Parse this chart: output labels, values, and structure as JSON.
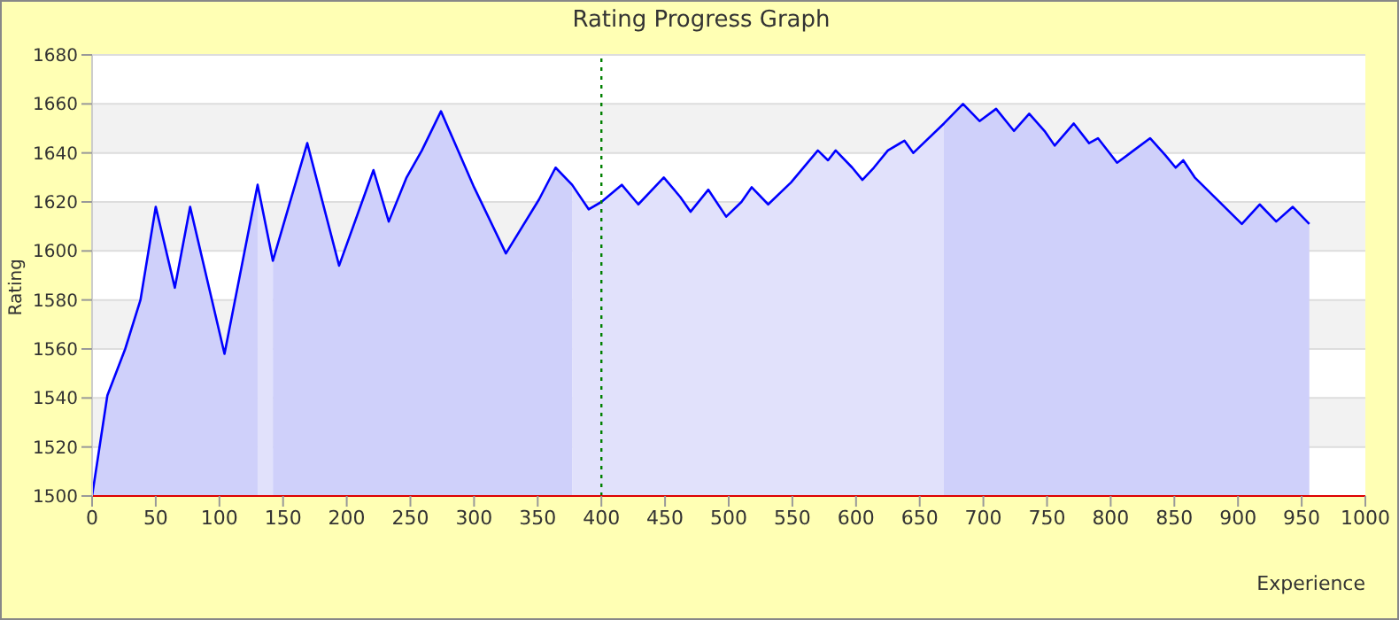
{
  "chart_data": {
    "type": "area",
    "title": "Rating Progress Graph",
    "xlabel": "Experience",
    "ylabel": "Rating",
    "xlim": [
      0,
      1000
    ],
    "xticks": [
      0,
      50,
      100,
      150,
      200,
      250,
      300,
      350,
      400,
      450,
      500,
      550,
      600,
      650,
      700,
      750,
      800,
      850,
      900,
      950,
      1000
    ],
    "ylim": [
      1500,
      1680
    ],
    "yticks": [
      1500,
      1520,
      1540,
      1560,
      1580,
      1600,
      1620,
      1640,
      1660,
      1680
    ],
    "grid": "y",
    "ref_lines": [
      {
        "axis": "x",
        "value": 400,
        "color": "#008000",
        "line_style": "dotted"
      }
    ],
    "series": [
      {
        "color": "#cfd0fa",
        "x": [
          0,
          12,
          26,
          38,
          50,
          65,
          77,
          104,
          130
        ],
        "values": [
          1500,
          1541,
          1560,
          1580,
          1618,
          1585,
          1618,
          1558,
          1627
        ]
      },
      {
        "color": "#e1e1fb",
        "x": [
          130,
          142
        ],
        "values": [
          1627,
          1596
        ]
      },
      {
        "color": "#cfd0fa",
        "x": [
          142,
          169,
          194,
          221,
          233,
          247,
          259,
          274,
          300,
          325,
          351,
          364,
          377
        ],
        "values": [
          1596,
          1644,
          1594,
          1633,
          1612,
          1630,
          1641,
          1657,
          1626,
          1599,
          1621,
          1634,
          1627
        ]
      },
      {
        "color": "#e1e1fb",
        "x": [
          377,
          390,
          400,
          416,
          429,
          449,
          462,
          470,
          484,
          498,
          510,
          518,
          531,
          549,
          570,
          578,
          584,
          597,
          605,
          614,
          625,
          638,
          645,
          669
        ],
        "values": [
          1627,
          1617,
          1620,
          1627,
          1619,
          1630,
          1622,
          1616,
          1625,
          1614,
          1620,
          1626,
          1619,
          1628,
          1641,
          1637,
          1641,
          1634,
          1629,
          1634,
          1641,
          1645,
          1640,
          1652
        ]
      },
      {
        "color": "#cfd0fa",
        "x": [
          669,
          684,
          697,
          710,
          724,
          736,
          748,
          756,
          771,
          783,
          790,
          805,
          818,
          831,
          843,
          851,
          857,
          866,
          903,
          917,
          930,
          943,
          956
        ],
        "values": [
          1652,
          1660,
          1653,
          1658,
          1649,
          1656,
          1649,
          1643,
          1652,
          1644,
          1646,
          1636,
          1641,
          1646,
          1639,
          1634,
          1637,
          1630,
          1611,
          1619,
          1612,
          1618,
          1611
        ]
      },
      {
        "type": "line",
        "color": "#0000ff",
        "x": [
          0,
          12,
          26,
          38,
          50,
          65,
          77,
          104,
          130,
          142,
          169,
          194,
          221,
          233,
          247,
          259,
          274,
          300,
          325,
          351,
          364,
          377,
          390,
          400,
          416,
          429,
          449,
          462,
          470,
          484,
          498,
          510,
          518,
          531,
          549,
          570,
          578,
          584,
          597,
          605,
          614,
          625,
          638,
          645,
          669,
          684,
          697,
          710,
          724,
          736,
          748,
          756,
          771,
          783,
          790,
          805,
          818,
          831,
          843,
          851,
          857,
          866,
          903,
          917,
          930,
          943,
          956
        ],
        "values": [
          1500,
          1541,
          1560,
          1580,
          1618,
          1585,
          1618,
          1558,
          1627,
          1596,
          1644,
          1594,
          1633,
          1612,
          1630,
          1641,
          1657,
          1626,
          1599,
          1621,
          1634,
          1627,
          1617,
          1620,
          1627,
          1619,
          1630,
          1622,
          1616,
          1625,
          1614,
          1620,
          1626,
          1619,
          1628,
          1641,
          1637,
          1641,
          1634,
          1629,
          1634,
          1641,
          1645,
          1640,
          1652,
          1660,
          1653,
          1658,
          1649,
          1656,
          1649,
          1643,
          1652,
          1644,
          1646,
          1636,
          1641,
          1646,
          1639,
          1634,
          1637,
          1630,
          1611,
          1619,
          1612,
          1618,
          1611
        ]
      }
    ]
  }
}
